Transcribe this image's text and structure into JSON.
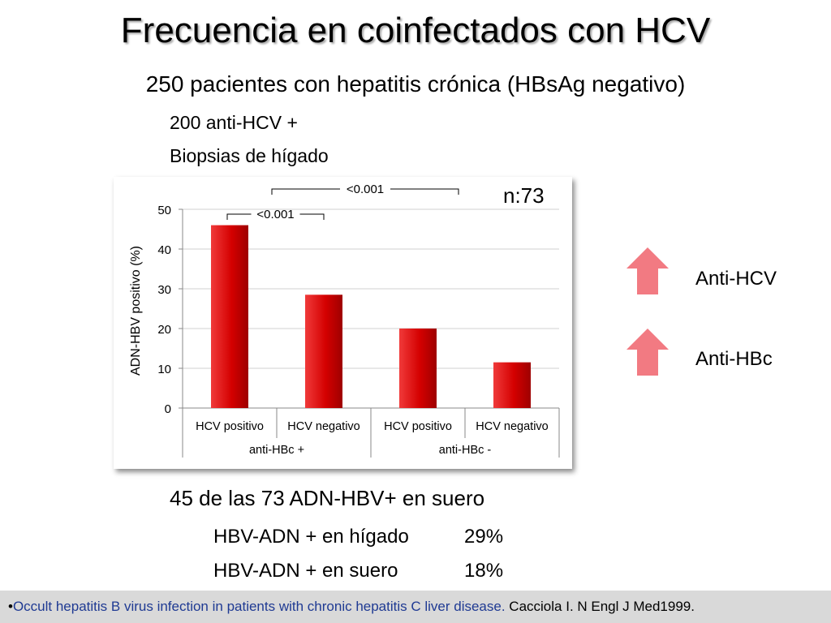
{
  "slide": {
    "title": "Frecuencia en coinfectados con HCV",
    "subtitle": "250 pacientes con hepatitis crónica (HBsAg negativo)",
    "line1": "200 anti-HCV +",
    "line2": "Biopsias de hígado",
    "n_label": "n:73",
    "legend": [
      {
        "label": "Anti-HCV",
        "icon": "up-arrow-icon"
      },
      {
        "label": "Anti-HBc",
        "icon": "up-arrow-icon"
      }
    ],
    "summary": "45 de las 73 ADN-HBV+ en suero",
    "rows": [
      {
        "label": "HBV-ADN + en hígado",
        "value": "29%"
      },
      {
        "label": "HBV-ADN + en suero",
        "value": "18%"
      }
    ],
    "footer": {
      "prefix": "•",
      "highlight": "Occult hepatitis B virus infection in patients with chronic hepatitis C liver disease.",
      "citation": " Cacciola I. N Engl J Med1999."
    },
    "colors": {
      "bar": "#d40000",
      "arrow": "#f27a82",
      "footer_bg": "#d9d9d9",
      "highlight_text": "#1f3a93"
    }
  },
  "chart_data": {
    "type": "bar",
    "categories": [
      "HCV positivo",
      "HCV negativo",
      "HCV positivo",
      "HCV negativo"
    ],
    "groups": [
      {
        "label": "anti-HBc +",
        "categories": [
          "HCV positivo",
          "HCV negativo"
        ]
      },
      {
        "label": "anti-HBc -",
        "categories": [
          "HCV positivo",
          "HCV negativo"
        ]
      }
    ],
    "values": [
      46,
      28.5,
      20,
      11.5
    ],
    "ylabel": "ADN-HBV positivo (%)",
    "ylim": [
      0,
      50
    ],
    "yticks": [
      0,
      10,
      20,
      30,
      40,
      50
    ],
    "grid": true,
    "annotations": [
      {
        "text": "<0.001",
        "between": [
          "HCV positivo",
          "HCV negativo"
        ],
        "group": "anti-HBc +"
      },
      {
        "text": "<0.001",
        "between": [
          "anti-HBc +",
          "anti-HBc -"
        ]
      }
    ]
  }
}
